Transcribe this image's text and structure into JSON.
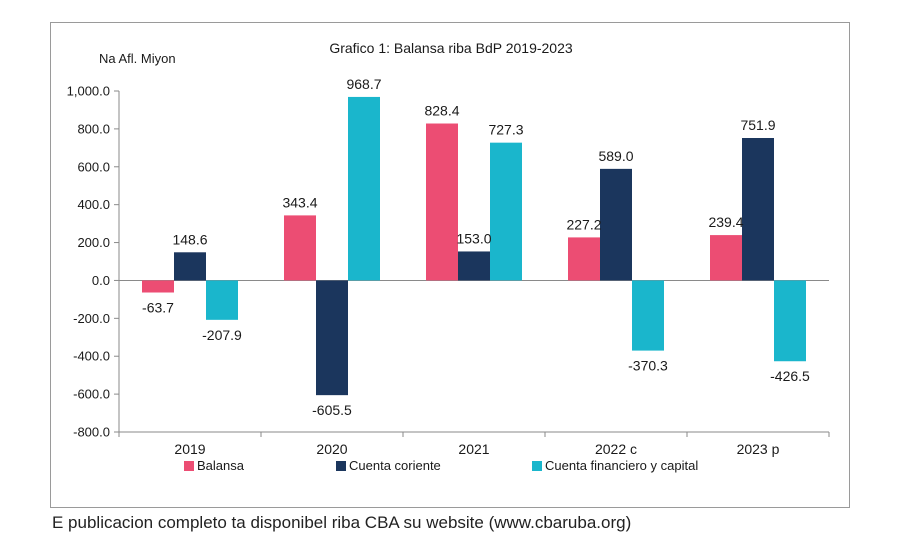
{
  "chart_data": {
    "type": "bar",
    "title": "Grafico 1: Balansa riba BdP 2019-2023",
    "ylabel": "Na Afl. Miyon",
    "xlabel": "",
    "categories": [
      "2019",
      "2020",
      "2021",
      "2022 c",
      "2023 p"
    ],
    "ylim": [
      -800,
      1000
    ],
    "yticks": [
      1000,
      800,
      600,
      400,
      200,
      0,
      -200,
      -400,
      -600,
      -800
    ],
    "ytick_labels": [
      "1,000.0",
      "800.0",
      "600.0",
      "400.0",
      "200.0",
      "0.0",
      "-200.0",
      "-400.0",
      "-600.0",
      "-800.0"
    ],
    "grid": false,
    "legend": "bottom",
    "series": [
      {
        "name": "Balansa",
        "color": "#ec4d73",
        "values": [
          -63.7,
          343.4,
          828.4,
          227.2,
          239.4
        ],
        "labels": [
          "-63.7",
          "343.4",
          "828.4",
          "227.2",
          "239.4"
        ]
      },
      {
        "name": "Cuenta coriente",
        "color": "#1b365d",
        "values": [
          148.6,
          -605.5,
          153.0,
          589.0,
          751.9
        ],
        "labels": [
          "148.6",
          "-605.5",
          "153.0",
          "589.0",
          "751.9"
        ]
      },
      {
        "name": "Cuenta financiero y capital",
        "color": "#1ab6cc",
        "values": [
          -207.9,
          968.7,
          727.3,
          -370.3,
          -426.5
        ],
        "labels": [
          "-207.9",
          "968.7",
          "727.3",
          "-370.3",
          "-426.5"
        ]
      }
    ]
  },
  "footer": {
    "text": "E publicacion completo ta disponibel riba CBA su website (www.cbaruba.org)"
  }
}
